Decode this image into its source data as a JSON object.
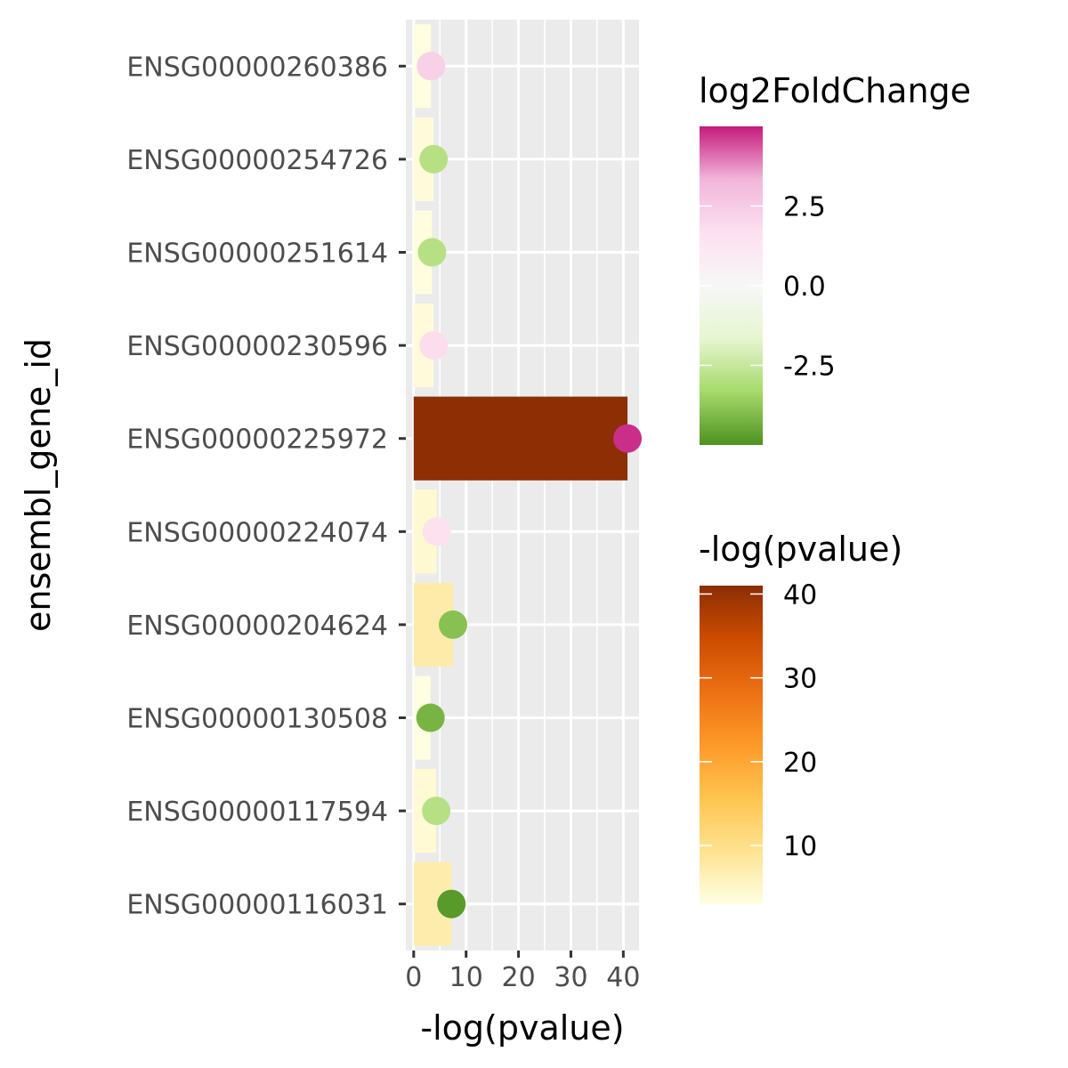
{
  "chart_data": {
    "type": "bar",
    "xlabel": "-log(pvalue)",
    "ylabel": "ensembl_gene_id",
    "xlim": [
      -1.5,
      43
    ],
    "x_ticks": [
      0,
      10,
      20,
      30,
      40
    ],
    "categories": [
      "ENSG00000260386",
      "ENSG00000254726",
      "ENSG00000251614",
      "ENSG00000230596",
      "ENSG00000225972",
      "ENSG00000224074",
      "ENSG00000204624",
      "ENSG00000130508",
      "ENSG00000117594",
      "ENSG00000116031"
    ],
    "series": [
      {
        "values": [
          3.3,
          3.8,
          3.5,
          3.8,
          40.8,
          4.4,
          7.5,
          3.2,
          4.3,
          7.2
        ],
        "color_by": "-log(pvalue)"
      },
      {
        "mark": "point",
        "values": [
          3.3,
          3.8,
          3.5,
          3.8,
          40.8,
          4.4,
          7.5,
          3.2,
          4.3,
          7.2
        ],
        "log2FoldChange": [
          2.3,
          -2.9,
          -2.9,
          1.8,
          4.8,
          1.6,
          -3.9,
          -4.2,
          -2.9,
          -4.8
        ],
        "color_by": "log2FoldChange"
      }
    ],
    "grid": true,
    "legends": [
      {
        "title": "log2FoldChange",
        "type": "colorbar",
        "range": [
          -5,
          5
        ],
        "ticks": [
          2.5,
          0.0,
          -2.5
        ],
        "tick_labels": [
          "2.5",
          "0.0",
          "-2.5"
        ],
        "colors": [
          "#4d9221",
          "#a6d96a",
          "#e6f5d0",
          "#f7f7f7",
          "#fde0ef",
          "#f1b6da",
          "#c51b7d"
        ]
      },
      {
        "title": "-log(pvalue)",
        "type": "colorbar",
        "range": [
          3,
          41
        ],
        "ticks": [
          40,
          30,
          20,
          10
        ],
        "tick_labels": [
          "40",
          "30",
          "20",
          "10"
        ],
        "colors": [
          "#ffffe5",
          "#fee391",
          "#fec44f",
          "#fe9929",
          "#ec7014",
          "#cc4c02",
          "#8c2d04"
        ]
      }
    ],
    "legend_position": "right"
  }
}
